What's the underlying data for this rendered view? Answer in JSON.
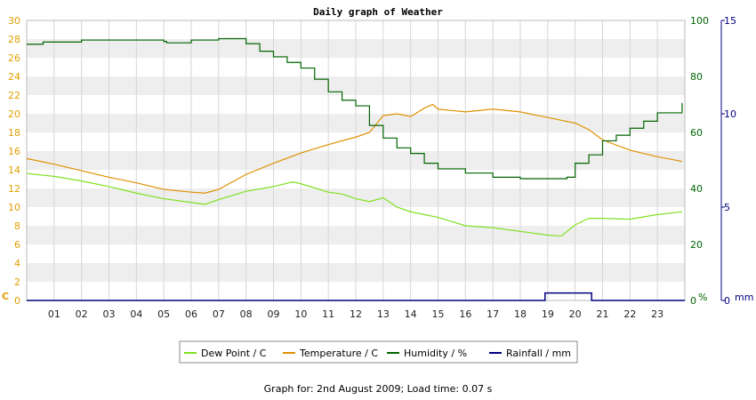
{
  "chart_data": {
    "type": "line",
    "title": "Daily graph of Weather",
    "x_ticks": [
      "01",
      "02",
      "03",
      "04",
      "05",
      "06",
      "07",
      "08",
      "09",
      "10",
      "11",
      "12",
      "13",
      "14",
      "15",
      "16",
      "17",
      "18",
      "19",
      "20",
      "21",
      "22",
      "23"
    ],
    "xlim": [
      0,
      24
    ],
    "grid": "alternating horizontal bands with vertical hour gridlines",
    "legend_position": "bottom-center",
    "axes": {
      "left": {
        "unit_label": "C",
        "ylim": [
          0,
          30
        ],
        "ticks": [
          0,
          2,
          4,
          6,
          8,
          10,
          12,
          14,
          16,
          18,
          20,
          22,
          24,
          26,
          28,
          30
        ],
        "color": "#e0a000"
      },
      "right_humidity": {
        "unit_label": "%",
        "ylim": [
          0,
          100
        ],
        "ticks": [
          0,
          20,
          40,
          60,
          80,
          100
        ],
        "color": "#006400"
      },
      "right_rain": {
        "unit_label": "mm",
        "ylim": [
          0,
          15
        ],
        "ticks": [
          0,
          5,
          10,
          15
        ],
        "color": "#000080"
      }
    },
    "series": [
      {
        "name": "Dew Point / C",
        "axis": "left",
        "color": "#80e020",
        "x": [
          0,
          1,
          2,
          3,
          4,
          5,
          6,
          6.5,
          7,
          8,
          9,
          9.7,
          10,
          11,
          11.5,
          12,
          12.5,
          13,
          13.5,
          14,
          15,
          16,
          17,
          18,
          19,
          19.5,
          20,
          20.5,
          21,
          22,
          23,
          23.9
        ],
        "y": [
          13.6,
          13.3,
          12.8,
          12.2,
          11.5,
          10.9,
          10.5,
          10.3,
          10.8,
          11.7,
          12.2,
          12.7,
          12.5,
          11.6,
          11.4,
          10.9,
          10.6,
          11.0,
          10.0,
          9.5,
          8.9,
          8.0,
          7.8,
          7.4,
          7.0,
          6.9,
          8.1,
          8.8,
          8.8,
          8.7,
          9.2,
          9.5
        ]
      },
      {
        "name": "Temperature / C",
        "axis": "left",
        "color": "#e09000",
        "x": [
          0,
          1,
          2,
          3,
          4,
          5,
          6,
          6.5,
          7,
          8,
          9,
          10,
          11,
          12,
          12.5,
          13,
          13.5,
          14,
          14.5,
          14.8,
          15,
          16,
          17,
          18,
          19,
          20,
          20.5,
          21,
          22,
          23,
          23.9
        ],
        "y": [
          15.2,
          14.6,
          13.9,
          13.2,
          12.6,
          11.9,
          11.6,
          11.5,
          11.9,
          13.5,
          14.7,
          15.8,
          16.7,
          17.5,
          18.0,
          19.8,
          20.0,
          19.7,
          20.6,
          21.0,
          20.5,
          20.2,
          20.5,
          20.2,
          19.6,
          19.0,
          18.3,
          17.2,
          16.1,
          15.4,
          14.9
        ]
      },
      {
        "name": "Humidity / %",
        "axis": "right_humidity",
        "color": "#006400",
        "x": [
          0,
          0.6,
          1,
          2,
          3,
          4,
          5,
          5.1,
          6,
          7,
          8,
          8.5,
          9,
          9.5,
          10,
          10.5,
          11,
          11.5,
          12,
          12.5,
          13,
          13.5,
          14,
          14.5,
          15,
          16,
          17,
          18,
          19,
          19.7,
          20,
          20.5,
          21,
          21.5,
          22,
          22.5,
          23,
          23.9
        ],
        "y": [
          91.5,
          92.3,
          92.3,
          93.0,
          93.0,
          93.0,
          92.5,
          92.0,
          93.0,
          93.5,
          91.7,
          89.0,
          87.0,
          85.0,
          83.0,
          79.0,
          74.5,
          71.5,
          69.5,
          62.5,
          58.0,
          54.5,
          52.5,
          49.0,
          47.0,
          45.5,
          44.0,
          43.5,
          43.5,
          44.0,
          49.0,
          52.0,
          57.0,
          59.0,
          61.5,
          64.0,
          67.0,
          70.5
        ]
      },
      {
        "name": "Rainfall / mm",
        "axis": "right_rain",
        "color": "#000080",
        "x": [
          0,
          18.9,
          18.9,
          20.6,
          20.6,
          24
        ],
        "y": [
          0,
          0,
          0.4,
          0.4,
          0,
          0
        ]
      }
    ]
  },
  "footer": "Graph for: 2nd August 2009; Load time: 0.07 s"
}
